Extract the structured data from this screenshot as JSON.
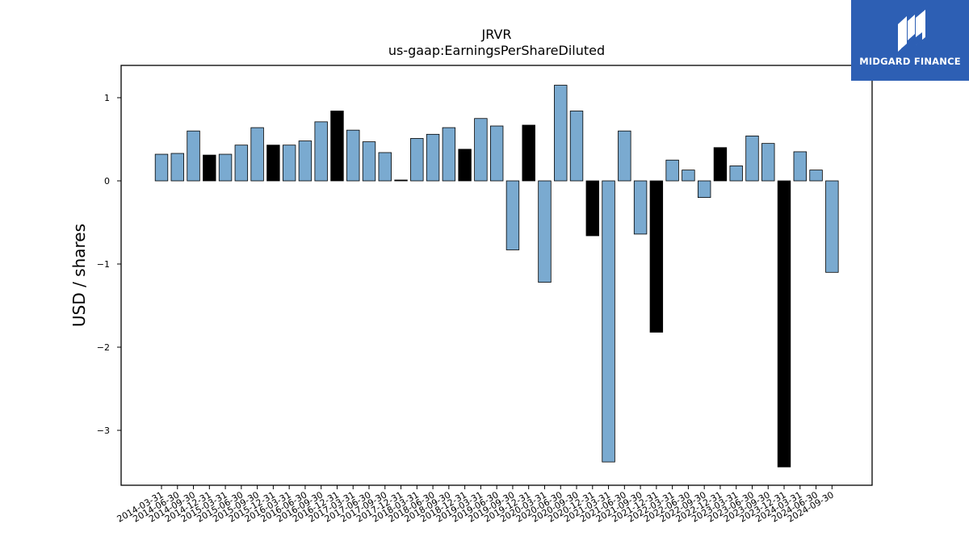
{
  "chart_data": {
    "type": "bar",
    "title": "JRVR",
    "subtitle": "us-gaap:EarningsPerShareDiluted",
    "ylabel": "USD / shares",
    "xlabel": "",
    "ylim": [
      -3.65,
      1.4
    ],
    "yticks": [
      1,
      0,
      -1,
      -2,
      -3
    ],
    "ytick_labels": [
      "1",
      "0",
      "−1",
      "−2",
      "−3"
    ],
    "colors": {
      "standard": "#7aaad0",
      "highlight": "#000000",
      "edge": "#000000"
    },
    "categories": [
      "2014-03-31",
      "2014-06-30",
      "2014-09-30",
      "2014-12-31",
      "2015-03-31",
      "2015-06-30",
      "2015-09-30",
      "2015-12-31",
      "2016-03-31",
      "2016-06-30",
      "2016-09-30",
      "2016-12-31",
      "2017-03-31",
      "2017-06-30",
      "2017-09-30",
      "2017-12-31",
      "2018-03-31",
      "2018-06-30",
      "2018-09-30",
      "2018-12-31",
      "2019-03-31",
      "2019-06-30",
      "2019-09-30",
      "2019-12-31",
      "2020-03-31",
      "2020-06-30",
      "2020-09-30",
      "2020-12-31",
      "2021-03-31",
      "2021-06-30",
      "2021-09-30",
      "2021-12-31",
      "2022-03-31",
      "2022-06-30",
      "2022-09-30",
      "2022-12-31",
      "2023-03-31",
      "2023-06-30",
      "2023-09-30",
      "2023-12-31",
      "2024-03-31",
      "2024-06-30",
      "2024-09-30"
    ],
    "values": [
      0.32,
      0.33,
      0.6,
      0.31,
      0.32,
      0.43,
      0.64,
      0.43,
      0.43,
      0.48,
      0.71,
      0.84,
      0.61,
      0.47,
      0.34,
      0.01,
      0.51,
      0.56,
      0.64,
      0.38,
      0.75,
      0.66,
      -0.83,
      0.67,
      -1.22,
      1.15,
      0.84,
      -0.66,
      -3.38,
      0.6,
      -0.64,
      -1.82,
      0.25,
      0.13,
      -0.2,
      0.4,
      0.18,
      0.54,
      0.45,
      -3.44,
      0.35,
      0.13,
      -1.1
    ],
    "highlighted": [
      false,
      false,
      false,
      true,
      false,
      false,
      false,
      true,
      false,
      false,
      false,
      true,
      false,
      false,
      false,
      true,
      false,
      false,
      false,
      true,
      false,
      false,
      false,
      true,
      false,
      false,
      false,
      true,
      false,
      false,
      false,
      true,
      false,
      false,
      false,
      true,
      false,
      false,
      false,
      true,
      false,
      false,
      false
    ]
  },
  "logo": {
    "name": "MIDGARD FINANCE",
    "color": "#2d5fb4"
  }
}
